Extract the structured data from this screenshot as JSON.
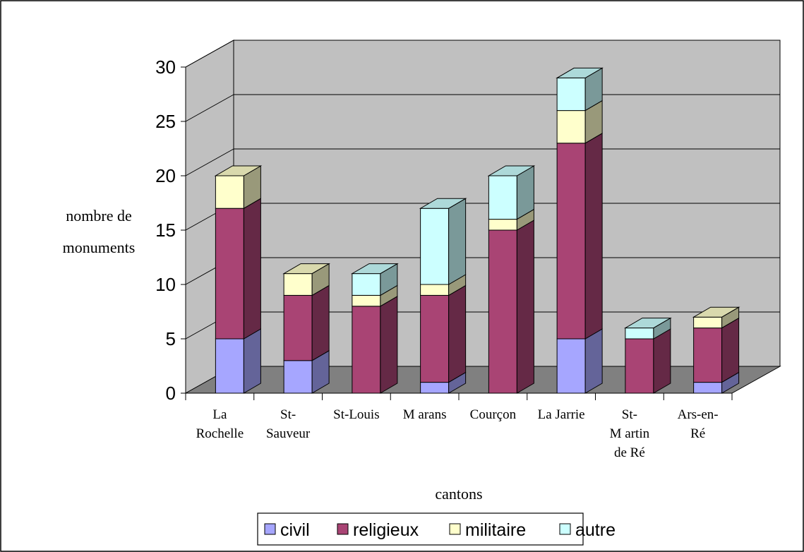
{
  "chart_data": {
    "type": "bar",
    "stacked": true,
    "three_d": true,
    "categories": [
      [
        "La",
        "Rochelle"
      ],
      [
        "St-",
        "Sauveur"
      ],
      [
        "St-Louis"
      ],
      [
        "M arans"
      ],
      [
        "Courçon"
      ],
      [
        "La Jarrie"
      ],
      [
        "St-",
        "M artin",
        "de Ré"
      ],
      [
        "Ars-en-",
        "Ré"
      ]
    ],
    "series": [
      {
        "name": "civil",
        "color": "#a6a6ff",
        "values": [
          5,
          3,
          0,
          1,
          0,
          5,
          0,
          1
        ]
      },
      {
        "name": "religieux",
        "color": "#a94474",
        "values": [
          12,
          6,
          8,
          8,
          15,
          18,
          5,
          5
        ]
      },
      {
        "name": "militaire",
        "color": "#ffffcc",
        "values": [
          3,
          2,
          1,
          1,
          1,
          3,
          0,
          1
        ]
      },
      {
        "name": "autre",
        "color": "#ccffff",
        "values": [
          0,
          0,
          2,
          7,
          4,
          3,
          1,
          0
        ]
      }
    ],
    "xlabel": "cantons",
    "ylabel_lines": [
      "nombre de",
      "monuments"
    ],
    "ylim": [
      0,
      30
    ],
    "yticks": [
      "0",
      "5",
      "10",
      "15",
      "20",
      "25",
      "30"
    ],
    "grid": true,
    "legend_position": "bottom"
  }
}
